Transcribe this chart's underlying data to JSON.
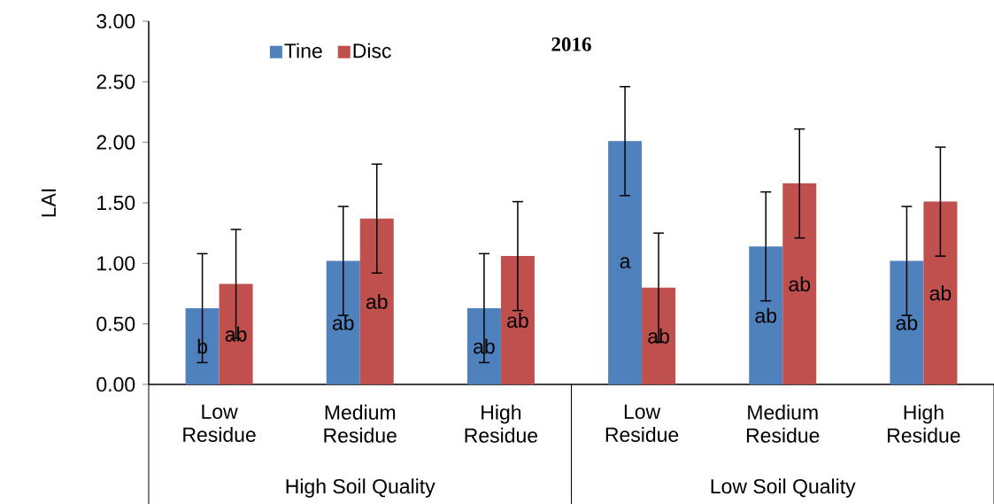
{
  "chart_data": {
    "type": "bar",
    "title": "2016",
    "ylabel": "LAI",
    "categories": [
      "Low Residue",
      "Medium Residue",
      "High Residue",
      "Low Residue",
      "Medium Residue",
      "High Residue"
    ],
    "series": [
      {
        "name": "Tine",
        "color": "#4f81bd",
        "values": [
          0.63,
          1.02,
          0.63,
          2.01,
          1.14,
          1.02
        ],
        "errors": [
          0.45,
          0.45,
          0.45,
          0.45,
          0.45,
          0.45
        ],
        "value_labels": [
          "b",
          "ab",
          "ab",
          "a",
          "ab",
          "ab"
        ]
      },
      {
        "name": "Disc",
        "color": "#c0504d",
        "values": [
          0.83,
          1.37,
          1.06,
          0.8,
          1.66,
          1.51
        ],
        "errors": [
          0.45,
          0.45,
          0.45,
          0.45,
          0.45,
          0.45
        ],
        "value_labels": [
          "ab",
          "ab",
          "ab",
          "ab",
          "ab",
          "ab"
        ]
      }
    ],
    "ylim": [
      0,
      3
    ],
    "yticks": [
      {
        "value": 0,
        "label": "0.00"
      },
      {
        "value": 0.5,
        "label": "0.50"
      },
      {
        "value": 1,
        "label": "1.00"
      },
      {
        "value": 1.5,
        "label": "1.50"
      },
      {
        "value": 2,
        "label": "2.00"
      },
      {
        "value": 2.5,
        "label": "2.50"
      },
      {
        "value": 3,
        "label": "3.00"
      }
    ],
    "annotations": [
      "High Soil Quality",
      "Low Soil Quality"
    ],
    "legend": "top left",
    "grid": false
  }
}
